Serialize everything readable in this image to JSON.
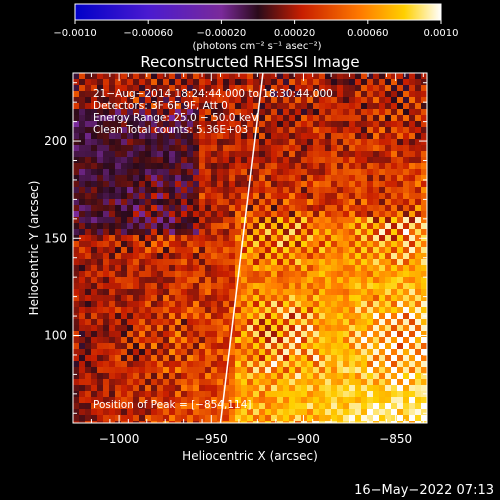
{
  "chart_data": {
    "type": "heatmap",
    "title": "Reconstructed RHESSI Image",
    "xlabel": "Heliocentric X (arcsec)",
    "ylabel": "Heliocentric Y (arcsec)",
    "xlim": [
      -1025,
      -833
    ],
    "ylim": [
      55,
      235
    ],
    "x_ticks": [
      -1000,
      -950,
      -900,
      -850
    ],
    "x_tick_labels": [
      "−1000",
      "−950",
      "−900",
      "−850"
    ],
    "y_ticks": [
      100,
      150,
      200
    ],
    "y_tick_labels": [
      "100",
      "150",
      "200"
    ],
    "colorbar": {
      "unit_label": "(photons cm⁻² s⁻¹ asec⁻²)",
      "range": [
        -0.001,
        0.001
      ],
      "ticks": [
        -0.001,
        -0.0006,
        -0.0002,
        0.0002,
        0.0006,
        0.001
      ],
      "tick_labels": [
        "−0.0010",
        "−0.00060",
        "−0.00020",
        "0.00020",
        "0.00060",
        "0.0010"
      ],
      "colors": [
        "#0000c8",
        "#4a1ad0",
        "#7a2a9a",
        "#2a0a1a",
        "#c81e00",
        "#ff7a00",
        "#ffd000",
        "#ffffff"
      ]
    },
    "limb_line": {
      "points": [
        [
          -945,
          55
        ],
        [
          -922,
          235
        ]
      ]
    },
    "peak": {
      "x": -854,
      "y": 114
    },
    "info_lines": [
      "21−Aug−2014 18:24:44.000 to 18:30:44.000",
      "Detectors: 3F 6F 9F, Att 0",
      "Energy Range: 25.0 − 50.0 keV",
      "Clean     Total counts: 5.36E+03"
    ],
    "peak_label": "Position of Peak = [−854,114]",
    "grid": false,
    "legend": "none"
  },
  "footer": {
    "timestamp": "16−May−2022 07:13"
  }
}
